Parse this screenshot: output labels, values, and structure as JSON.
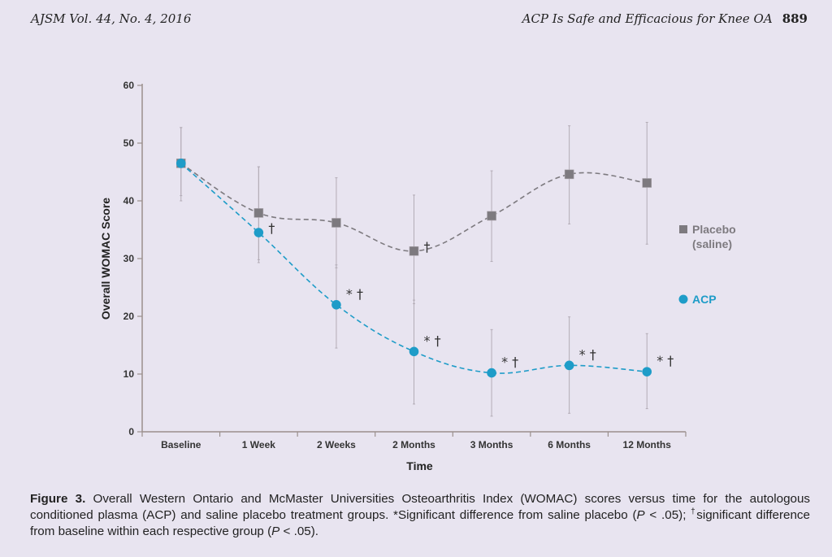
{
  "header": {
    "left": "AJSM Vol. 44, No. 4, 2016",
    "right": "ACP Is Safe and Efficacious for Knee OA",
    "page_number": "889"
  },
  "caption": {
    "label": "Figure 3.",
    "text_1": " Overall Western Ontario and McMaster Universities Osteoarthritis Index (WOMAC) scores versus time for the autologous conditioned plasma (ACP) and saline placebo treatment groups. *Significant difference from saline placebo (",
    "p1": "P",
    "text_2": " < .05); ",
    "dagger": "†",
    "text_3": "significant difference from baseline within each respective group (",
    "p2": "P",
    "text_4": " < .05)."
  },
  "chart_data": {
    "type": "line",
    "title": "",
    "xlabel": "Time",
    "ylabel": "Overall WOMAC Score",
    "ylim": [
      0,
      60
    ],
    "yticks": [
      0,
      10,
      20,
      30,
      40,
      50,
      60
    ],
    "grid": false,
    "legend_position": "right",
    "categories": [
      "Baseline",
      "1 Week",
      "2 Weeks",
      "2 Months",
      "3 Months",
      "6 Months",
      "12 Months"
    ],
    "series": [
      {
        "name": "Placebo (saline)",
        "legend_lines": [
          "Placebo",
          "(saline)"
        ],
        "marker": "square",
        "color": "#7d7a7f",
        "values": [
          46.5,
          37.9,
          36.2,
          31.3,
          37.4,
          44.6,
          43.1
        ],
        "error_low": [
          40.0,
          29.8,
          28.4,
          22.2,
          29.5,
          36.0,
          32.5
        ],
        "error_high": [
          52.7,
          45.9,
          44.0,
          41.0,
          45.2,
          53.0,
          53.6
        ],
        "annotations": [
          "",
          "",
          "",
          "†",
          "",
          "",
          ""
        ]
      },
      {
        "name": "ACP",
        "legend_lines": [
          "ACP"
        ],
        "marker": "circle",
        "color": "#1e9cc8",
        "values": [
          46.5,
          34.5,
          22.0,
          13.9,
          10.2,
          11.5,
          10.4
        ],
        "error_low": [
          40.9,
          29.3,
          14.5,
          4.8,
          2.7,
          3.2,
          4.0
        ],
        "error_high": [
          52.7,
          45.9,
          28.9,
          22.8,
          17.7,
          19.9,
          17.0
        ],
        "annotations": [
          "",
          "†",
          "* †",
          "* †",
          "* †",
          "* †",
          "* †"
        ]
      }
    ]
  }
}
